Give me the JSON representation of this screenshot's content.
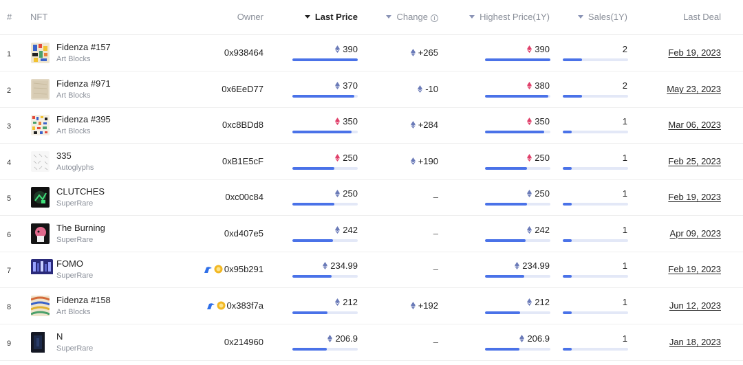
{
  "columns": {
    "index": "#",
    "nft": "NFT",
    "owner": "Owner",
    "last_price": "Last Price",
    "change": "Change",
    "highest_price": "Highest Price(1Y)",
    "sales": "Sales(1Y)",
    "last_deal": "Last Deal"
  },
  "colors": {
    "accent_bar": "#4a72e8",
    "bar_track": "#e3e8f7",
    "positive": "#34b35a",
    "negative": "#e0463f",
    "eth_gray": "#6b7bb8",
    "eth_red": "#e0406a"
  },
  "rows": [
    {
      "index": "1",
      "name": "Fidenza #157",
      "collection": "Art Blocks",
      "owner": "0x938464",
      "owner_icons": false,
      "last_price": "390",
      "last_price_icon": "eth-gray",
      "last_price_level": 1.0,
      "change": "+265",
      "change_type": "positive",
      "change_icon": "eth-gray",
      "highest_price": "390",
      "highest_price_icon": "eth-red",
      "highest_price_level": 1.0,
      "sales": "2",
      "sales_level": 0.29,
      "last_deal": "Feb 19, 2023"
    },
    {
      "index": "2",
      "name": "Fidenza #971",
      "collection": "Art Blocks",
      "owner": "0x6EeD77",
      "owner_icons": false,
      "last_price": "370",
      "last_price_icon": "eth-gray",
      "last_price_level": 0.95,
      "change": "-10",
      "change_type": "negative",
      "change_icon": "eth-gray",
      "highest_price": "380",
      "highest_price_icon": "eth-red",
      "highest_price_level": 0.97,
      "sales": "2",
      "sales_level": 0.29,
      "last_deal": "May 23, 2023"
    },
    {
      "index": "3",
      "name": "Fidenza #395",
      "collection": "Art Blocks",
      "owner": "0xc8BDd8",
      "owner_icons": false,
      "last_price": "350",
      "last_price_icon": "eth-red",
      "last_price_level": 0.9,
      "change": "+284",
      "change_type": "positive",
      "change_icon": "eth-gray",
      "highest_price": "350",
      "highest_price_icon": "eth-red",
      "highest_price_level": 0.9,
      "sales": "1",
      "sales_level": 0.14,
      "last_deal": "Mar 06, 2023"
    },
    {
      "index": "4",
      "name": "335",
      "collection": "Autoglyphs",
      "owner": "0xB1E5cF",
      "owner_icons": false,
      "last_price": "250",
      "last_price_icon": "eth-red",
      "last_price_level": 0.64,
      "change": "+190",
      "change_type": "positive",
      "change_icon": "eth-gray",
      "highest_price": "250",
      "highest_price_icon": "eth-red",
      "highest_price_level": 0.64,
      "sales": "1",
      "sales_level": 0.14,
      "last_deal": "Feb 25, 2023"
    },
    {
      "index": "5",
      "name": "CLUTCHES",
      "collection": "SuperRare",
      "owner": "0xc00c84",
      "owner_icons": false,
      "last_price": "250",
      "last_price_icon": "eth-gray",
      "last_price_level": 0.64,
      "change": "–",
      "change_type": "none",
      "change_icon": "",
      "highest_price": "250",
      "highest_price_icon": "eth-gray",
      "highest_price_level": 0.64,
      "sales": "1",
      "sales_level": 0.14,
      "last_deal": "Feb 19, 2023"
    },
    {
      "index": "6",
      "name": "The Burning",
      "collection": "SuperRare",
      "owner": "0xd407e5",
      "owner_icons": false,
      "last_price": "242",
      "last_price_icon": "eth-gray",
      "last_price_level": 0.62,
      "change": "–",
      "change_type": "none",
      "change_icon": "",
      "highest_price": "242",
      "highest_price_icon": "eth-gray",
      "highest_price_level": 0.62,
      "sales": "1",
      "sales_level": 0.14,
      "last_deal": "Apr 09, 2023"
    },
    {
      "index": "7",
      "name": "FOMO",
      "collection": "SuperRare",
      "owner": "0x95b291",
      "owner_icons": true,
      "last_price": "234.99",
      "last_price_icon": "eth-gray",
      "last_price_level": 0.6,
      "change": "–",
      "change_type": "none",
      "change_icon": "",
      "highest_price": "234.99",
      "highest_price_icon": "eth-gray",
      "highest_price_level": 0.6,
      "sales": "1",
      "sales_level": 0.14,
      "last_deal": "Feb 19, 2023"
    },
    {
      "index": "8",
      "name": "Fidenza #158",
      "collection": "Art Blocks",
      "owner": "0x383f7a",
      "owner_icons": true,
      "last_price": "212",
      "last_price_icon": "eth-gray",
      "last_price_level": 0.54,
      "change": "+192",
      "change_type": "positive",
      "change_icon": "eth-gray",
      "highest_price": "212",
      "highest_price_icon": "eth-gray",
      "highest_price_level": 0.54,
      "sales": "1",
      "sales_level": 0.14,
      "last_deal": "Jun 12, 2023"
    },
    {
      "index": "9",
      "name": "N",
      "collection": "SuperRare",
      "owner": "0x214960",
      "owner_icons": false,
      "last_price": "206.9",
      "last_price_icon": "eth-gray",
      "last_price_level": 0.53,
      "change": "–",
      "change_type": "none",
      "change_icon": "",
      "highest_price": "206.9",
      "highest_price_icon": "eth-gray",
      "highest_price_level": 0.53,
      "sales": "1",
      "sales_level": 0.14,
      "last_deal": "Jan 18, 2023"
    }
  ]
}
